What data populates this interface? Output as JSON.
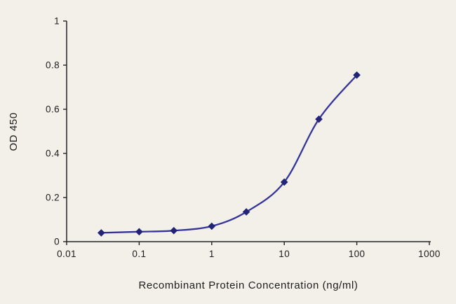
{
  "figure": {
    "background": "#f2f0e9"
  },
  "chart_data": {
    "type": "line",
    "xlabel": "Recombinant Protein Concentration (ng/ml)",
    "ylabel": "OD 450",
    "x_scale": "log",
    "xlim": [
      0.01,
      1000
    ],
    "ylim": [
      0,
      1
    ],
    "x_ticks": [
      "0.01",
      "0.1",
      "1",
      "10",
      "100",
      "1000"
    ],
    "y_ticks": [
      "0",
      "0.2",
      "0.4",
      "0.6",
      "0.8",
      "1"
    ],
    "x": [
      0.03,
      0.1,
      0.3,
      1,
      3,
      10,
      30,
      100
    ],
    "values": [
      0.04,
      0.045,
      0.05,
      0.07,
      0.135,
      0.27,
      0.555,
      0.755
    ],
    "grid": false,
    "legend": false,
    "line_color": "#34349b",
    "marker": "diamond",
    "marker_color": "#232377",
    "axis_color": "#222222",
    "text_color": "#1c1c1c"
  }
}
